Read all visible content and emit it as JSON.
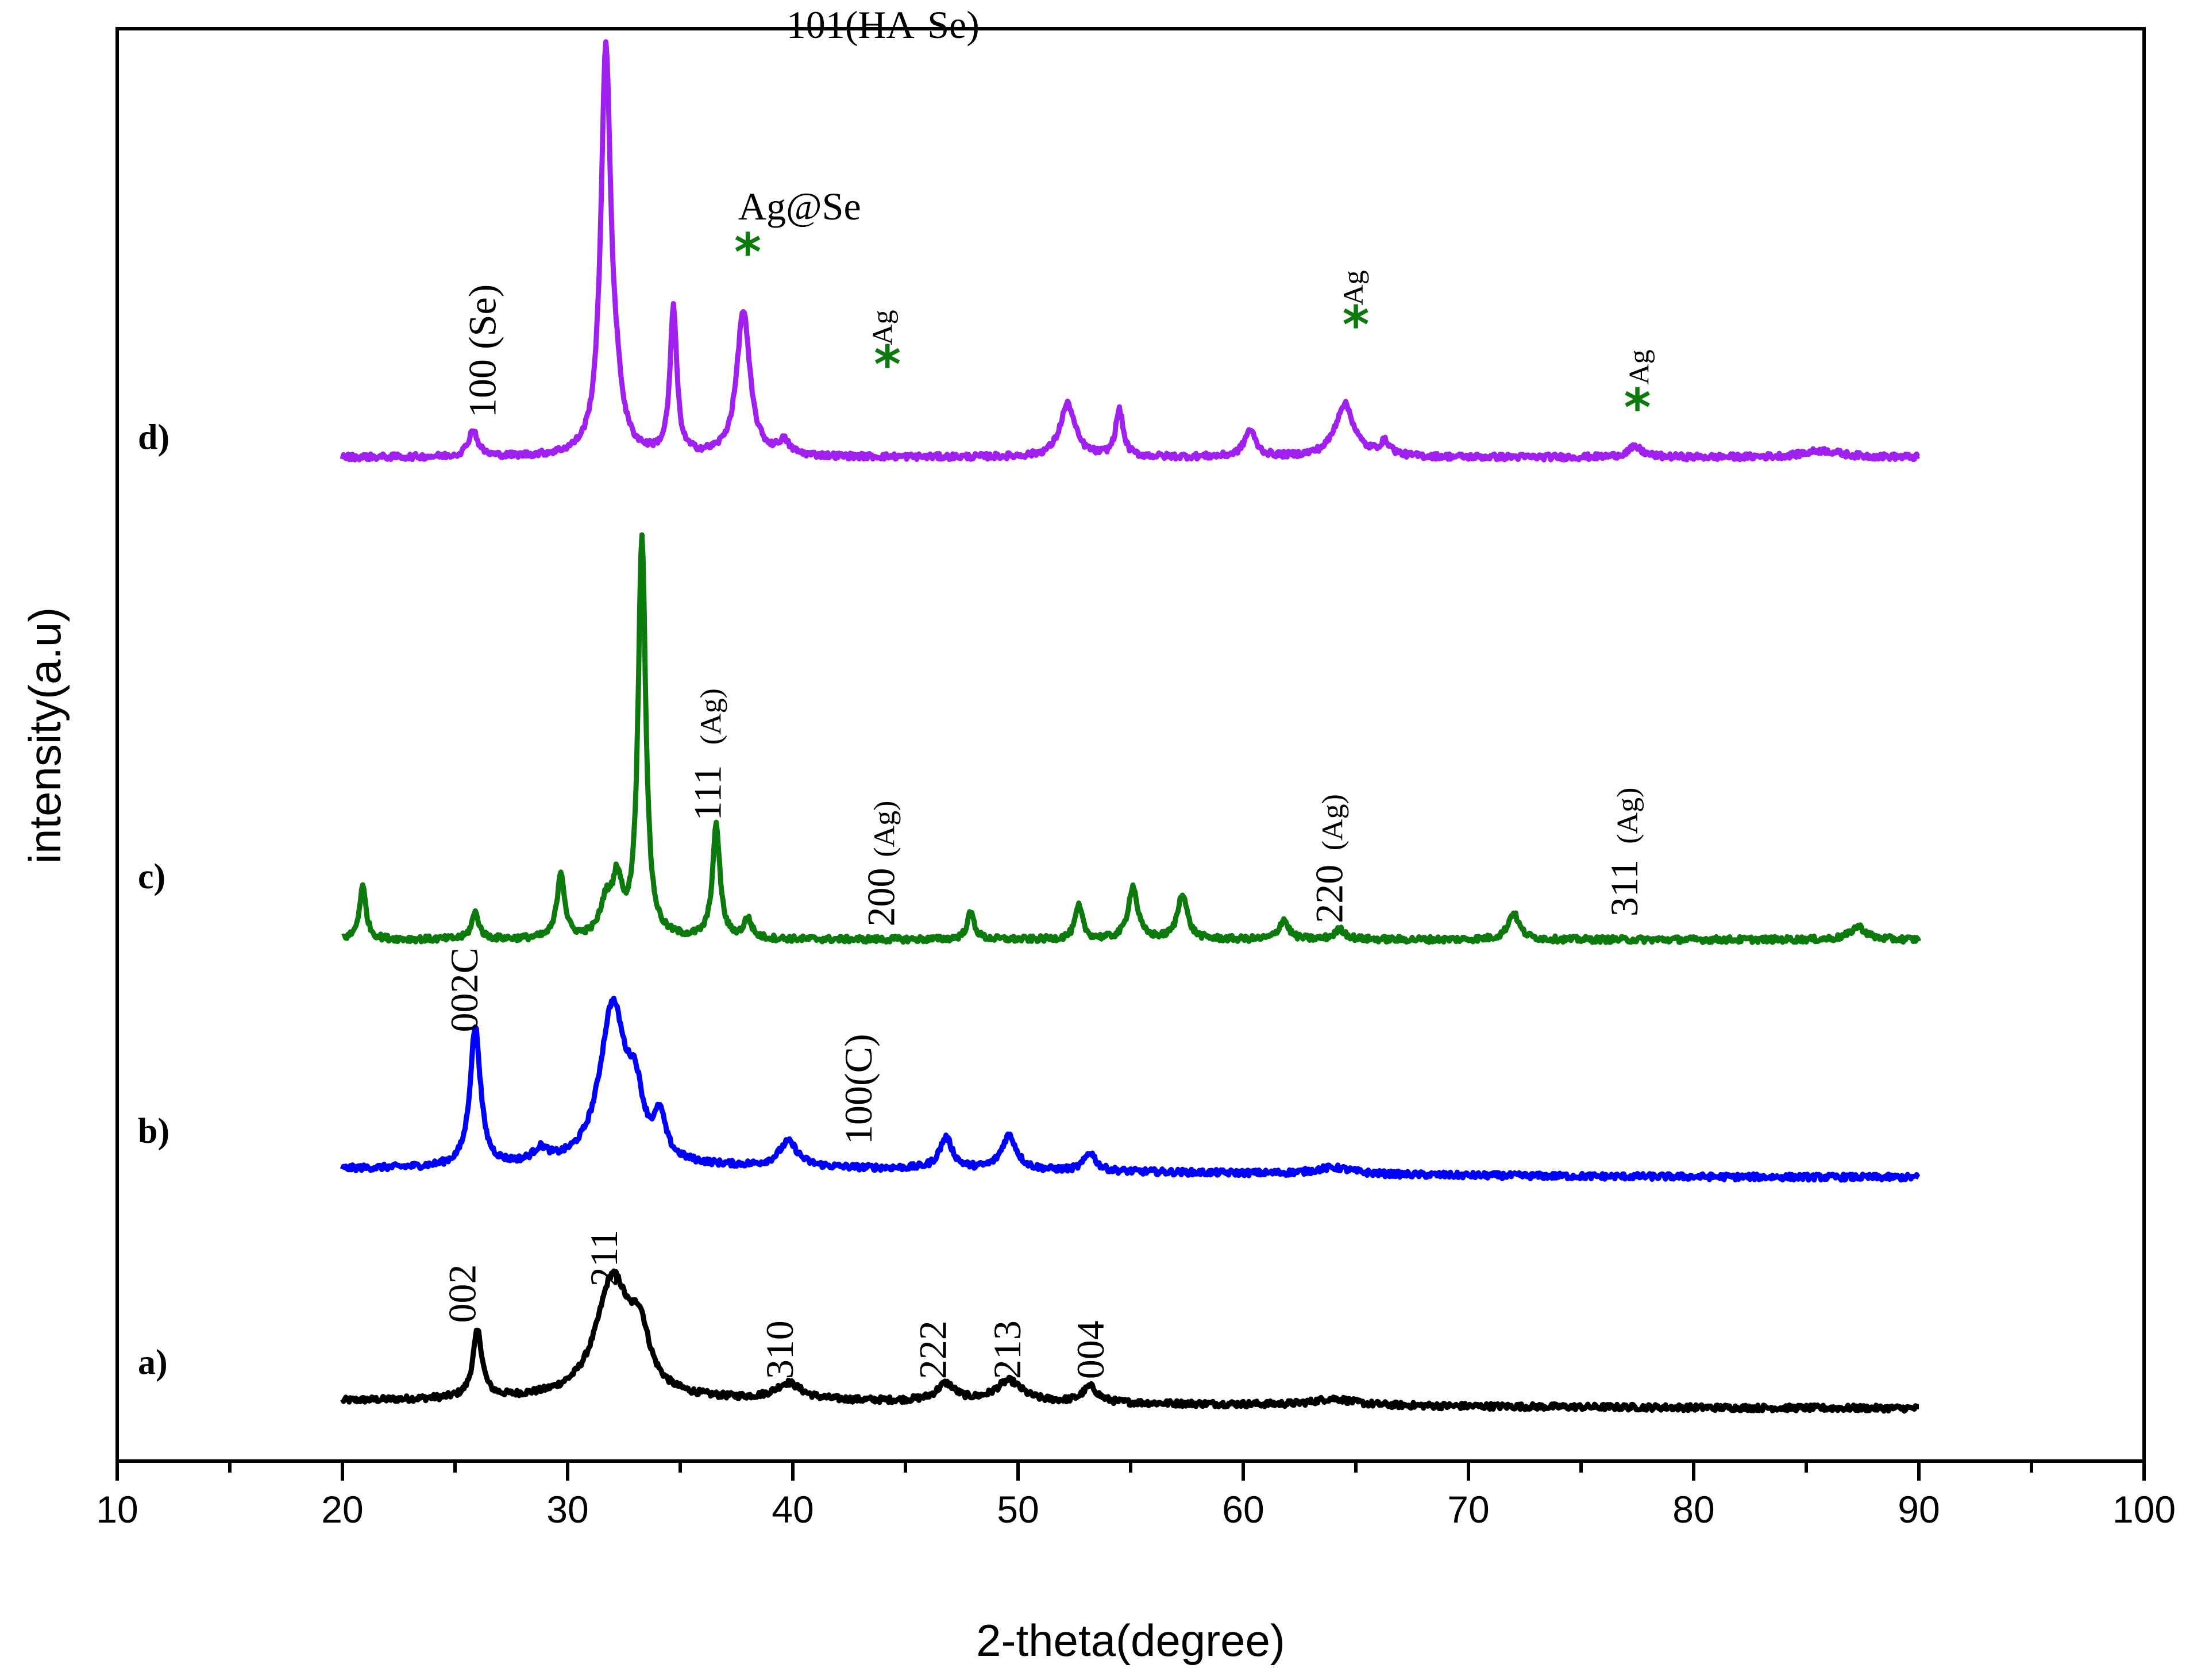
{
  "chart_data": {
    "type": "line",
    "title": "",
    "xlabel": "2-theta(degree)",
    "ylabel": "intensity(a.u)",
    "xlim": [
      10,
      100
    ],
    "xticks": [
      "10",
      "20",
      "30",
      "40",
      "50",
      "60",
      "70",
      "80",
      "90",
      "100"
    ],
    "grid": false,
    "legend": "none",
    "series": [
      {
        "name": "a)",
        "color": "#000000",
        "baseline": 0.0,
        "hump": [
          [
            26,
            0.2,
            7
          ],
          [
            32,
            1.2,
            35
          ]
        ],
        "peaks": [
          [
            26.0,
            10,
            0.25
          ],
          [
            32.0,
            18,
            0.9
          ],
          [
            33.2,
            8,
            0.5
          ],
          [
            39.8,
            2.5,
            0.7
          ],
          [
            46.8,
            2.6,
            0.5
          ],
          [
            49.6,
            3.2,
            0.7
          ],
          [
            53.2,
            2.4,
            0.4
          ],
          [
            64,
            1,
            1
          ]
        ]
      },
      {
        "name": "b)",
        "color": "#0000ff",
        "baseline": 35.0,
        "hump": [
          [
            32,
            1.5,
            30
          ]
        ],
        "peaks": [
          [
            25.9,
            21,
            0.28
          ],
          [
            32.0,
            24,
            0.7
          ],
          [
            33.0,
            8,
            0.4
          ],
          [
            34.1,
            6,
            0.3
          ],
          [
            28.8,
            2,
            0.4
          ],
          [
            39.8,
            3.8,
            0.5
          ],
          [
            46.8,
            4.7,
            0.35
          ],
          [
            49.6,
            5.2,
            0.4
          ],
          [
            53.2,
            2.8,
            0.3
          ],
          [
            64,
            1,
            1
          ]
        ]
      },
      {
        "name": "c)",
        "color": "#0d7a0d",
        "baseline": 71.0,
        "hump": [],
        "peaks": [
          [
            20.9,
            8,
            0.18
          ],
          [
            25.9,
            4,
            0.2
          ],
          [
            29.7,
            10,
            0.2
          ],
          [
            31.7,
            5,
            0.3
          ],
          [
            32.2,
            8,
            0.25
          ],
          [
            33.3,
            61,
            0.2
          ],
          [
            36.6,
            17,
            0.2
          ],
          [
            38.0,
            3,
            0.2
          ],
          [
            47.9,
            4,
            0.2
          ],
          [
            52.7,
            5,
            0.2
          ],
          [
            55.1,
            8,
            0.25
          ],
          [
            57.3,
            7,
            0.25
          ],
          [
            61.8,
            3,
            0.25
          ],
          [
            64.3,
            1.5,
            0.3
          ],
          [
            72.0,
            4,
            0.3
          ],
          [
            87.3,
            2,
            0.4
          ]
        ]
      },
      {
        "name": "d)",
        "color": "#a020f0",
        "baseline": 144.0,
        "hump": [],
        "peaks": [
          [
            25.8,
            4,
            0.25
          ],
          [
            31.7,
            61,
            0.27
          ],
          [
            32.2,
            5,
            0.3
          ],
          [
            34.7,
            22,
            0.18
          ],
          [
            37.8,
            22,
            0.35
          ],
          [
            39.6,
            2,
            0.3
          ],
          [
            52.2,
            8,
            0.4
          ],
          [
            54.5,
            7,
            0.2
          ],
          [
            60.3,
            4,
            0.3
          ],
          [
            64.5,
            8,
            0.5
          ],
          [
            66.3,
            2,
            0.3
          ],
          [
            77.4,
            1.5,
            0.4
          ],
          [
            85.7,
            1,
            1
          ]
        ]
      }
    ],
    "series_labels": [
      {
        "text": "a)",
        "y": 6.5
      },
      {
        "text": "b)",
        "y": 41.5
      },
      {
        "text": "c)",
        "y": 80.0
      },
      {
        "text": "d)",
        "y": 146.5
      }
    ],
    "peak_labels": [
      {
        "text": "002",
        "x": 25.9,
        "y": 13,
        "rotate": true,
        "size": 68
      },
      {
        "text": "211",
        "x": 32.2,
        "y": 18.5,
        "rotate": true,
        "size": 68
      },
      {
        "text": "310",
        "x": 40.0,
        "y": 4.5,
        "rotate": true,
        "size": 68
      },
      {
        "text": "222",
        "x": 46.8,
        "y": 4.5,
        "rotate": true,
        "size": 68
      },
      {
        "text": "213",
        "x": 50.1,
        "y": 4.5,
        "rotate": true,
        "size": 68
      },
      {
        "text": "004",
        "x": 53.8,
        "y": 4.5,
        "rotate": true,
        "size": 68
      },
      {
        "text": "002C",
        "x": 26.0,
        "y": 57,
        "rotate": true,
        "size": 68
      },
      {
        "text": "100(C)",
        "x": 43.5,
        "y": 40,
        "rotate": true,
        "size": 68
      },
      {
        "text": "111",
        "x": 36.8,
        "y": 89,
        "rotate": true,
        "size": 68
      },
      {
        "text": "(Ag)",
        "x": 36.8,
        "y": 100.5,
        "rotate": true,
        "size": 52
      },
      {
        "text": "200",
        "x": 44.5,
        "y": 73,
        "rotate": true,
        "size": 68
      },
      {
        "text": "(Ag)",
        "x": 44.5,
        "y": 83.5,
        "rotate": true,
        "size": 52
      },
      {
        "text": "220",
        "x": 64.4,
        "y": 73.5,
        "rotate": true,
        "size": 68
      },
      {
        "text": "(Ag)",
        "x": 64.4,
        "y": 84.5,
        "rotate": true,
        "size": 52
      },
      {
        "text": "311",
        "x": 77.5,
        "y": 74.5,
        "rotate": true,
        "size": 68
      },
      {
        "text": "(Ag)",
        "x": 77.5,
        "y": 85.5,
        "rotate": true,
        "size": 52
      },
      {
        "text": "100 (Se)",
        "x": 26.8,
        "y": 150,
        "rotate": true,
        "size": 68
      },
      {
        "text": "101(HA-Se)",
        "x": 44.0,
        "y": 207.5,
        "rotate": false,
        "size": 68
      },
      {
        "text": "Ag@Se",
        "x": 40.3,
        "y": 180,
        "rotate": false,
        "size": 68
      },
      {
        "text": "Ag",
        "x": 44.4,
        "y": 161,
        "rotate": true,
        "size": 50
      },
      {
        "text": "Ag",
        "x": 65.3,
        "y": 167,
        "rotate": true,
        "size": 50
      },
      {
        "text": "Ag",
        "x": 78.0,
        "y": 155,
        "rotate": true,
        "size": 50
      }
    ],
    "stars": [
      {
        "x": 38.0,
        "y": 174.5,
        "color": "#0d7a0d"
      },
      {
        "x": 44.2,
        "y": 157.5,
        "color": "#0d7a0d"
      },
      {
        "x": 65.0,
        "y": 163.5,
        "color": "#0d7a0d"
      },
      {
        "x": 77.5,
        "y": 151.0,
        "color": "#0d7a0d"
      }
    ]
  }
}
